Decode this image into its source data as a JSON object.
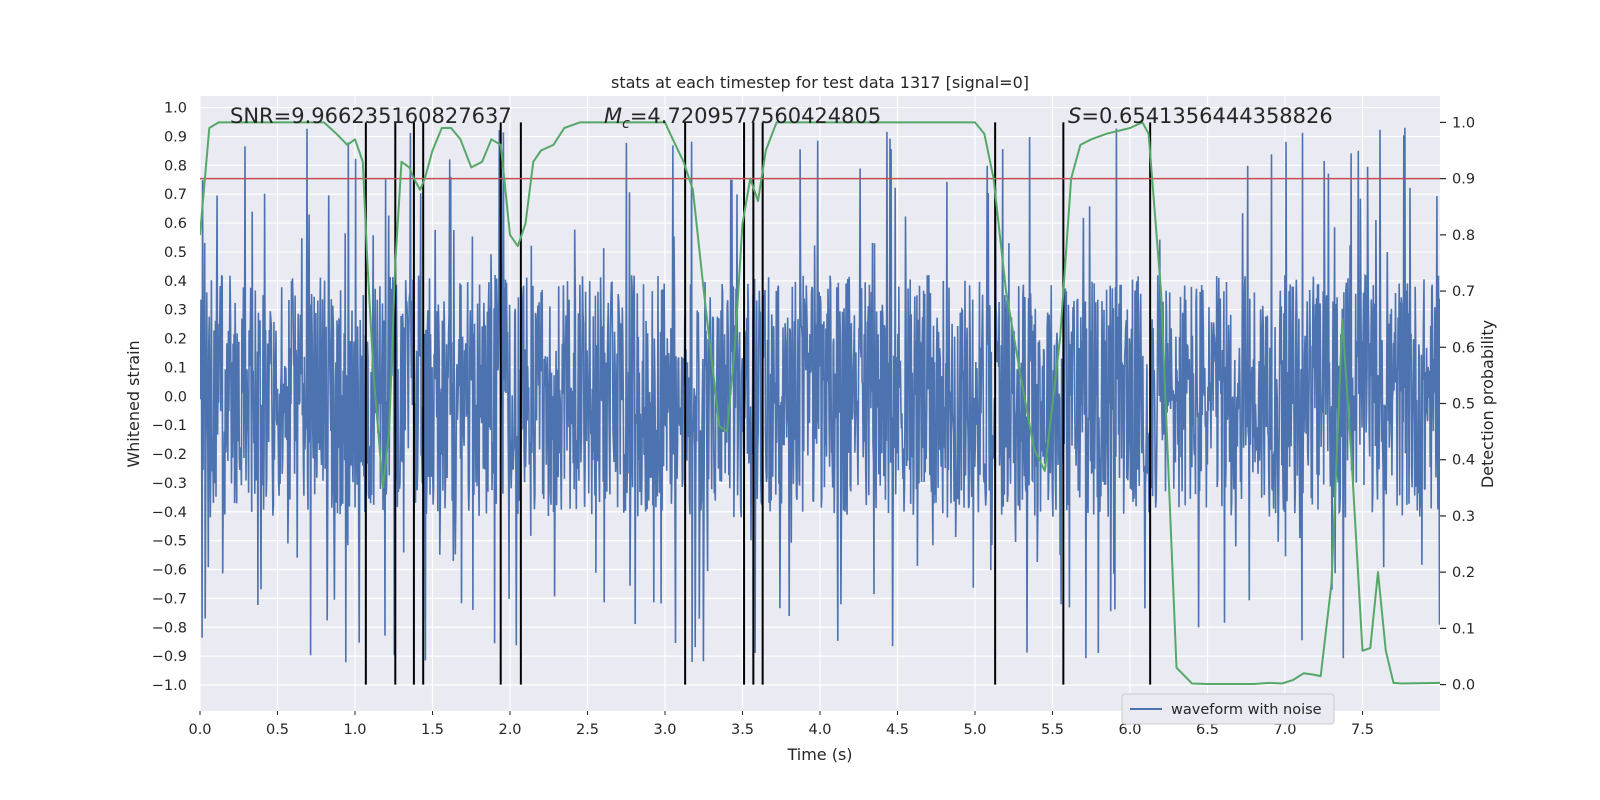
{
  "chart_data": {
    "type": "line",
    "title": "stats at each timestep for test data 1317 [signal=0]",
    "xlabel": "Time (s)",
    "ylabel": "Whitened strain",
    "ylabel_right": "Detection probability",
    "xlim": [
      0,
      8
    ],
    "ylim": [
      -1.09,
      1.04
    ],
    "ylim_right": [
      -0.047,
      1.047
    ],
    "x_ticks": [
      "0.0",
      "0.5",
      "1.0",
      "1.5",
      "2.0",
      "2.5",
      "3.0",
      "3.5",
      "4.0",
      "4.5",
      "5.0",
      "5.5",
      "6.0",
      "6.5",
      "7.0",
      "7.5"
    ],
    "y_ticks": [
      "1.0",
      "0.9",
      "0.8",
      "0.7",
      "0.6",
      "0.5",
      "0.4",
      "0.3",
      "0.2",
      "0.1",
      "0.0",
      "−0.1",
      "−0.2",
      "−0.3",
      "−0.4",
      "−0.5",
      "−0.6",
      "−0.7",
      "−0.8",
      "−0.9",
      "−1.0"
    ],
    "y_right_ticks": [
      "1.0",
      "0.9",
      "0.8",
      "0.7",
      "0.6",
      "0.5",
      "0.4",
      "0.3",
      "0.2",
      "0.1",
      "0.0"
    ],
    "annotations": {
      "snr": "SNR=9.966235160827637",
      "mc_symbol": "M",
      "mc_sub": "c",
      "mc_value": "=4.7209577560424805",
      "s_symbol": "S",
      "s_value": "=0.6541356444358826"
    },
    "legend": {
      "label": "waveform with noise",
      "placement": "lower-right"
    },
    "threshold": {
      "value": 0.9,
      "axis": "right",
      "color": "#c44e52"
    },
    "series": [
      {
        "name": "waveform with noise",
        "axis": "left",
        "color": "#4c72b0",
        "synthetic": {
          "samples": 2400,
          "core_amplitude": 0.42,
          "spike_max": 0.93,
          "spike_min": -1.0
        }
      },
      {
        "name": "detection probability",
        "axis": "right",
        "color": "#55a868",
        "x": [
          0.0,
          0.06,
          0.12,
          0.2,
          0.5,
          0.8,
          0.88,
          0.95,
          1.0,
          1.05,
          1.08,
          1.12,
          1.18,
          1.22,
          1.26,
          1.3,
          1.35,
          1.38,
          1.42,
          1.45,
          1.5,
          1.56,
          1.62,
          1.68,
          1.75,
          1.82,
          1.88,
          1.94,
          2.0,
          2.05,
          2.1,
          2.15,
          2.2,
          2.28,
          2.35,
          2.45,
          3.0,
          3.05,
          3.12,
          3.18,
          3.25,
          3.35,
          3.4,
          3.45,
          3.5,
          3.55,
          3.6,
          3.65,
          3.72,
          3.8,
          4.4,
          4.8,
          5.0,
          5.06,
          5.12,
          5.2,
          5.3,
          5.38,
          5.45,
          5.55,
          5.62,
          5.68,
          5.75,
          5.85,
          6.0,
          6.08,
          6.12,
          6.2,
          6.3,
          6.4,
          6.5,
          6.8,
          6.9,
          6.98,
          7.05,
          7.12,
          7.18,
          7.23,
          7.3,
          7.37,
          7.43,
          7.5,
          7.55,
          7.6,
          7.65,
          7.7,
          7.75,
          8.0
        ],
        "values": [
          0.8,
          0.99,
          1.0,
          1.0,
          1.0,
          1.0,
          0.98,
          0.96,
          0.97,
          0.93,
          0.75,
          0.55,
          0.35,
          0.45,
          0.75,
          0.93,
          0.92,
          0.9,
          0.88,
          0.9,
          0.95,
          0.99,
          0.99,
          0.97,
          0.92,
          0.93,
          0.97,
          0.96,
          0.8,
          0.78,
          0.82,
          0.93,
          0.95,
          0.96,
          0.99,
          1.0,
          1.0,
          0.97,
          0.93,
          0.88,
          0.7,
          0.46,
          0.45,
          0.6,
          0.82,
          0.9,
          0.86,
          0.95,
          1.0,
          1.0,
          1.0,
          1.0,
          1.0,
          0.98,
          0.9,
          0.7,
          0.54,
          0.42,
          0.38,
          0.62,
          0.9,
          0.96,
          0.97,
          0.98,
          0.99,
          1.0,
          0.98,
          0.7,
          0.03,
          0.002,
          0.001,
          0.001,
          0.003,
          0.002,
          0.008,
          0.02,
          0.018,
          0.015,
          0.18,
          0.65,
          0.4,
          0.06,
          0.065,
          0.2,
          0.06,
          0.003,
          0.002,
          0.003
        ]
      }
    ],
    "vertical_lines": [
      1.07,
      1.26,
      1.38,
      1.44,
      1.94,
      2.07,
      3.13,
      3.51,
      3.57,
      3.63,
      5.13,
      5.57,
      6.13
    ]
  }
}
